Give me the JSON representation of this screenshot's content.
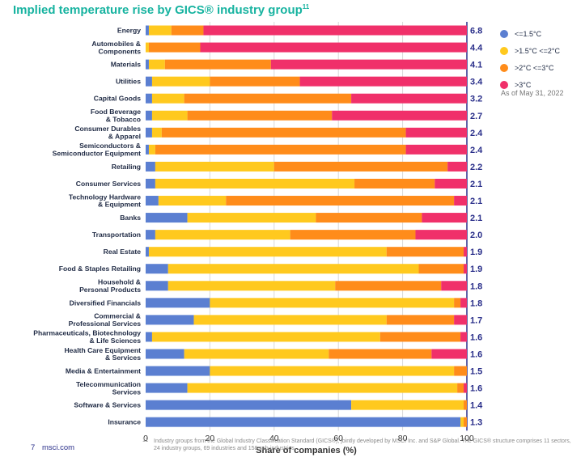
{
  "title": "Implied temperature rise by GICS® industry group",
  "title_sup": "11",
  "colors": {
    "blue": "#5b7fd1",
    "yellow": "#ffc91e",
    "orange": "#ff8c1a",
    "red": "#f0306a",
    "divider": "#2a2f8a"
  },
  "legend": [
    {
      "label": "<=1.5°C",
      "color": "#5b7fd1"
    },
    {
      "label": ">1.5°C <=2°C",
      "color": "#ffc91e"
    },
    {
      "label": ">2°C <=3°C",
      "color": "#ff8c1a"
    },
    {
      "label": ">3°C",
      "color": "#f0306a"
    }
  ],
  "as_of": "As of May 31, 2022",
  "footer": {
    "page_number": "7",
    "site": "msci.com",
    "footnote_number": "11",
    "footnote_text": "Industry groups from the Global Industry Classification Standard (GICS®), jointly developed by MSCI Inc. and S&P Global. The GICS® structure comprises 11 sectors, 24 industry groups, 69 industries and 158 sub-industries."
  },
  "chart_data": {
    "type": "bar",
    "orientation": "horizontal",
    "stacked": true,
    "xlabel": "Share of companies (%)",
    "xlim": [
      0,
      100
    ],
    "xticks": [
      0,
      20,
      40,
      60,
      80,
      100
    ],
    "series": [
      {
        "name": "<=1.5°C",
        "values": [
          1,
          0,
          1,
          2,
          2,
          2,
          2,
          1,
          3,
          3,
          4,
          13,
          3,
          1,
          7,
          7,
          20,
          15,
          2,
          12,
          20,
          13,
          64,
          98
        ]
      },
      {
        "name": ">1.5°C <=2°C",
        "values": [
          7,
          1,
          5,
          18,
          10,
          11,
          3,
          2,
          37,
          62,
          21,
          40,
          42,
          74,
          78,
          52,
          76,
          60,
          71,
          45,
          76,
          84,
          35,
          1
        ]
      },
      {
        "name": ">2°C <=3°C",
        "values": [
          10,
          16,
          33,
          28,
          52,
          45,
          76,
          78,
          54,
          25,
          71,
          33,
          39,
          24,
          14,
          33,
          2,
          21,
          25,
          32,
          4,
          2,
          1,
          1
        ]
      },
      {
        "name": ">3°C",
        "values": [
          82,
          83,
          61,
          52,
          36,
          42,
          19,
          19,
          6,
          10,
          4,
          14,
          16,
          1,
          1,
          8,
          2,
          4,
          2,
          11,
          0,
          1,
          0,
          0
        ]
      }
    ],
    "categories": [
      [
        "Energy"
      ],
      [
        "Automobiles &",
        "Components"
      ],
      [
        "Materials"
      ],
      [
        "Utilities"
      ],
      [
        "Capital Goods"
      ],
      [
        "Food Beverage",
        "& Tobacco"
      ],
      [
        "Consumer Durables",
        "& Apparel"
      ],
      [
        "Semiconductors &",
        "Semiconductor Equipment"
      ],
      [
        "Retailing"
      ],
      [
        "Consumer Services"
      ],
      [
        "Technology Hardware",
        "& Equipment"
      ],
      [
        "Banks"
      ],
      [
        "Transportation"
      ],
      [
        "Real Estate"
      ],
      [
        "Food & Staples Retailing"
      ],
      [
        "Household &",
        "Personal Products"
      ],
      [
        "Diversified Financials"
      ],
      [
        "Commercial &",
        "Professional Services"
      ],
      [
        "Pharmaceuticals, Biotechnology",
        "& Life Sciences"
      ],
      [
        "Health Care Equipment",
        "& Services"
      ],
      [
        "Media & Entertainment"
      ],
      [
        "Telecommunication",
        "Services"
      ],
      [
        "Software & Services"
      ],
      [
        "Insurance"
      ]
    ],
    "implied_temperature_rise": [
      "6.8",
      "4.4",
      "4.1",
      "3.4",
      "3.2",
      "2.7",
      "2.4",
      "2.4",
      "2.2",
      "2.1",
      "2.1",
      "2.1",
      "2.0",
      "1.9",
      "1.9",
      "1.8",
      "1.8",
      "1.7",
      "1.6",
      "1.6",
      "1.5",
      "1.6",
      "1.4",
      "1.3"
    ],
    "grid": true
  }
}
